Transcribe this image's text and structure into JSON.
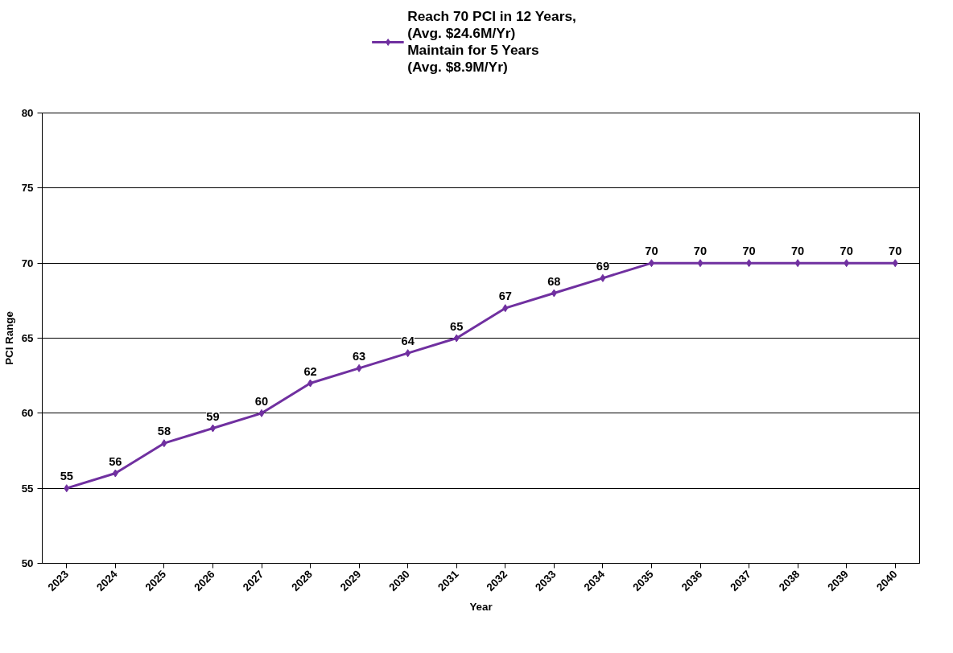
{
  "chart_data": {
    "type": "line",
    "xlabel": "Year",
    "ylabel": "PCI Range",
    "categories": [
      "2023",
      "2024",
      "2025",
      "2026",
      "2027",
      "2028",
      "2029",
      "2030",
      "2031",
      "2032",
      "2033",
      "2034",
      "2035",
      "2036",
      "2037",
      "2038",
      "2039",
      "2040"
    ],
    "series": [
      {
        "name": "Reach 70 PCI in 12 Years,\n(Avg. $24.6M/Yr)\nMaintain for 5 Years\n(Avg. $8.9M/Yr)",
        "color": "#7030a0",
        "values": [
          55,
          56,
          58,
          59,
          60,
          62,
          63,
          64,
          65,
          67,
          68,
          69,
          70,
          70,
          70,
          70,
          70,
          70
        ]
      }
    ],
    "ylim": [
      50,
      80
    ],
    "yticks": [
      50,
      55,
      60,
      65,
      70,
      75,
      80
    ],
    "grid": "y",
    "legend": "top",
    "marker": "diamond",
    "line_style": "solid",
    "data_labels": true
  }
}
